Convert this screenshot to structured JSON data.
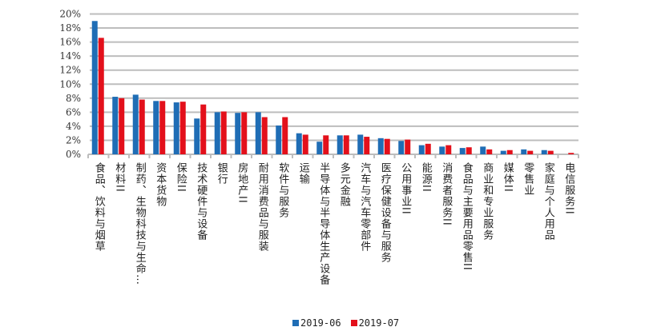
{
  "chart_data": {
    "type": "bar",
    "categories": [
      "食品、饮料与烟草",
      "材料II",
      "制药、生物科技与生命…",
      "资本货物",
      "保险II",
      "技术硬件与设备",
      "银行",
      "房地产II",
      "耐用消费品与服装",
      "软件与服务",
      "运输",
      "半导体与半导体生产设备",
      "多元金融",
      "汽车与汽车零部件",
      "医疗保健设备与服务",
      "公用事业II",
      "能源II",
      "消费者服务II",
      "食品与主要用品零售II",
      "商业和专业服务",
      "媒体II",
      "零售业",
      "家庭与个人用品",
      "电信服务II"
    ],
    "series": [
      {
        "name": "2019-06",
        "color": "#1f6db5",
        "values": [
          19.0,
          8.2,
          8.5,
          7.6,
          7.4,
          5.1,
          6.0,
          5.9,
          6.0,
          4.1,
          3.0,
          1.8,
          2.7,
          2.8,
          2.3,
          1.9,
          1.3,
          1.1,
          0.9,
          1.1,
          0.5,
          0.7,
          0.6,
          0.0
        ]
      },
      {
        "name": "2019-07",
        "color": "#e3101b",
        "values": [
          16.6,
          8.0,
          7.8,
          7.6,
          7.5,
          7.1,
          6.1,
          6.0,
          5.3,
          5.3,
          2.8,
          2.7,
          2.7,
          2.5,
          2.2,
          2.1,
          1.5,
          1.3,
          1.0,
          0.7,
          0.6,
          0.5,
          0.5,
          0.2
        ]
      }
    ],
    "yticks": [
      "0%",
      "2%",
      "4%",
      "6%",
      "8%",
      "10%",
      "12%",
      "14%",
      "16%",
      "18%",
      "20%"
    ],
    "ylim": [
      0,
      20
    ],
    "grid": true,
    "legend": "bottom",
    "xlabel": "",
    "ylabel": "",
    "title": ""
  }
}
